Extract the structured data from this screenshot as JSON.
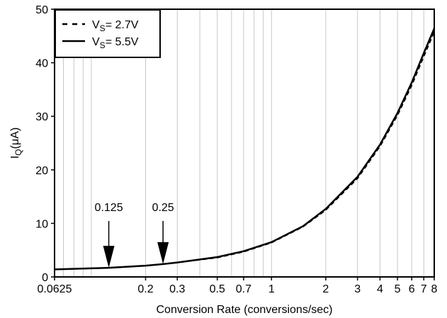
{
  "chart_data": {
    "type": "line",
    "xlabel": "Conversion Rate (conversions/sec)",
    "ylabel": {
      "main": "I",
      "sub": "Q",
      "unit": "(μA)"
    },
    "xscale": "log",
    "xlim": [
      0.0625,
      8
    ],
    "ylim": [
      0,
      50
    ],
    "grid": "vertical minor log gridlines",
    "x_ticks": [
      {
        "value": 0.0625,
        "label": "0.0625"
      },
      {
        "value": 0.2,
        "label": "0.2"
      },
      {
        "value": 0.3,
        "label": "0.3"
      },
      {
        "value": 0.5,
        "label": "0.5"
      },
      {
        "value": 0.7,
        "label": "0.7"
      },
      {
        "value": 1,
        "label": "1"
      },
      {
        "value": 2,
        "label": "2"
      },
      {
        "value": 3,
        "label": "3"
      },
      {
        "value": 4,
        "label": "4"
      },
      {
        "value": 5,
        "label": "5"
      },
      {
        "value": 6,
        "label": "6"
      },
      {
        "value": 7,
        "label": "7"
      },
      {
        "value": 8,
        "label": "8"
      }
    ],
    "y_ticks": [
      {
        "value": 0,
        "label": "0"
      },
      {
        "value": 10,
        "label": "10"
      },
      {
        "value": 20,
        "label": "20"
      },
      {
        "value": 30,
        "label": "30"
      },
      {
        "value": 40,
        "label": "40"
      },
      {
        "value": 50,
        "label": "50"
      }
    ],
    "legend_position": "top-left",
    "series": [
      {
        "name": {
          "main": "V",
          "sub": "S",
          "rest": "= 2.7V"
        },
        "style": "dashed",
        "x": [
          0.0625,
          0.1,
          0.125,
          0.2,
          0.25,
          0.3,
          0.5,
          0.7,
          1,
          1.5,
          2,
          3,
          4,
          5,
          6,
          7,
          8
        ],
        "y": [
          1.4,
          1.6,
          1.7,
          2.1,
          2.4,
          2.7,
          3.6,
          4.7,
          6.4,
          9.4,
          12.5,
          18.4,
          24.4,
          30.2,
          35.8,
          41.2,
          45.8
        ]
      },
      {
        "name": {
          "main": "V",
          "sub": "S",
          "rest": "= 5.5V"
        },
        "style": "solid",
        "x": [
          0.0625,
          0.1,
          0.125,
          0.2,
          0.25,
          0.3,
          0.5,
          0.7,
          1,
          1.5,
          2,
          3,
          4,
          5,
          6,
          7,
          8
        ],
        "y": [
          1.4,
          1.6,
          1.7,
          2.1,
          2.4,
          2.7,
          3.7,
          4.8,
          6.5,
          9.5,
          12.7,
          18.7,
          24.7,
          30.6,
          36.3,
          41.8,
          46.4
        ]
      }
    ],
    "annotations": [
      {
        "label": "0.125",
        "x": 0.125,
        "y": 1.7
      },
      {
        "label": "0.25",
        "x": 0.25,
        "y": 2.4
      }
    ]
  }
}
